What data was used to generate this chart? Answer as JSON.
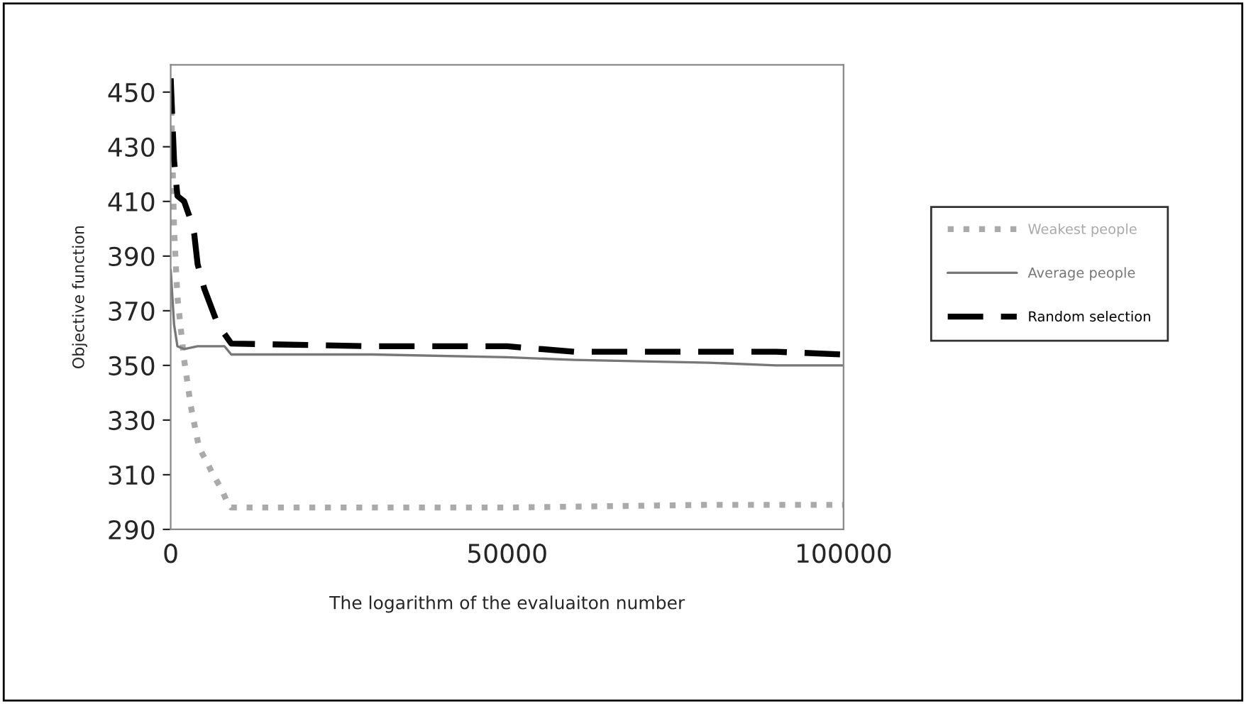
{
  "chart_data": {
    "type": "line",
    "xlabel": "The logarithm of the evaluaiton number",
    "ylabel": "Objective function",
    "xlim": [
      0,
      100000
    ],
    "xticks": [
      0,
      50000,
      100000
    ],
    "ylim": [
      290,
      460
    ],
    "yticks": [
      290,
      310,
      330,
      350,
      370,
      390,
      410,
      430,
      450
    ],
    "grid": false,
    "legend": "right",
    "marker": "none",
    "series": [
      {
        "name": "Weakest people",
        "color": "#aaaaaa",
        "line_style": "dotted",
        "x": [
          0,
          500,
          1000,
          2000,
          3000,
          4200,
          5500,
          6300,
          7500,
          8400,
          9000,
          20000,
          50000,
          80000,
          100000
        ],
        "values": [
          455,
          400,
          375,
          352,
          335,
          320,
          314,
          310,
          305,
          300,
          298,
          298,
          298,
          299,
          299
        ]
      },
      {
        "name": "Average people",
        "color": "#777777",
        "line_style": "solid",
        "x": [
          0,
          500,
          1000,
          2000,
          4000,
          8000,
          9000,
          30000,
          50000,
          60000,
          80000,
          90000,
          100000
        ],
        "values": [
          385,
          365,
          357,
          356,
          357,
          357,
          354,
          354,
          353,
          352,
          351,
          350,
          350
        ]
      },
      {
        "name": "Random selection",
        "color": "#000000",
        "line_style": "dashed",
        "x": [
          0,
          500,
          1000,
          2000,
          3000,
          3500,
          4000,
          5000,
          7000,
          9000,
          30000,
          50000,
          60000,
          90000,
          100000
        ],
        "values": [
          455,
          425,
          412,
          410,
          403,
          398,
          387,
          378,
          365,
          358,
          357,
          357,
          355,
          355,
          354
        ]
      }
    ]
  }
}
